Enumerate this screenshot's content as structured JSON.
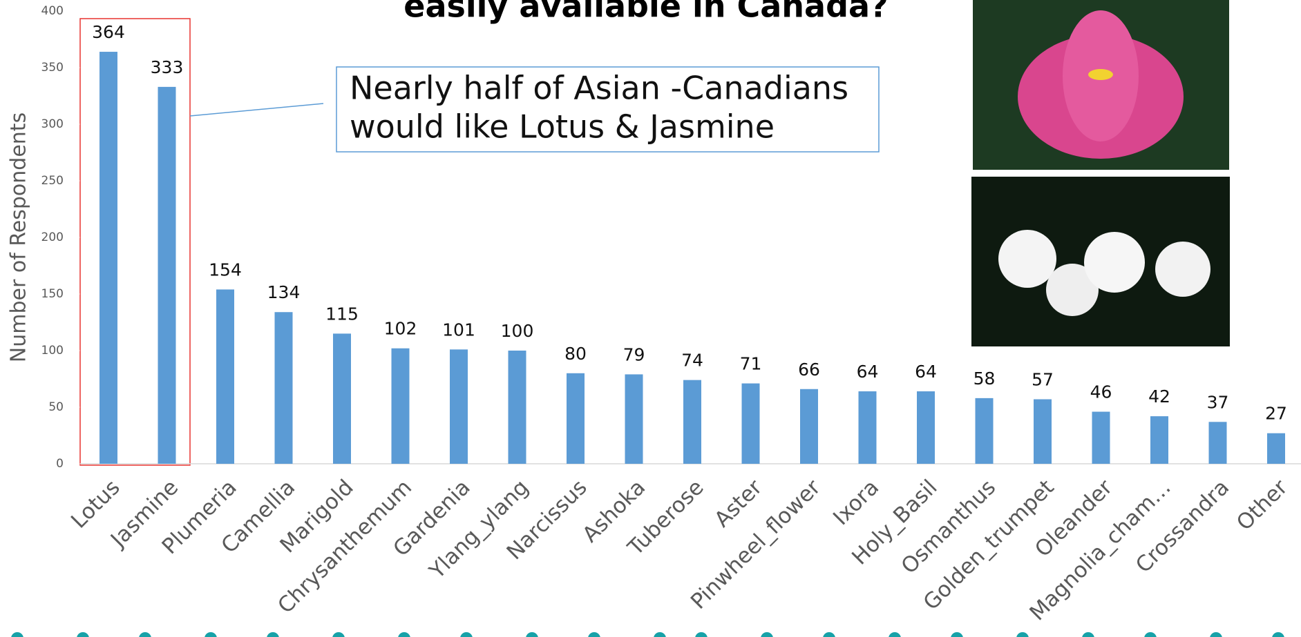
{
  "chart_data": {
    "type": "bar",
    "title": "easily available in Canada?",
    "y_label": "Number of Respondents",
    "annotation": [
      "Nearly half of Asian -Canadians",
      "would like Lotus & Jasmine"
    ],
    "categories": [
      "Lotus",
      "Jasmine",
      "Plumeria",
      "Camellia",
      "Marigold",
      "Chrysanthemum",
      "Gardenia",
      "Ylang_ylang",
      "Narcissus",
      "Ashoka",
      "Tuberose",
      "Aster",
      "Pinwheel_flower",
      "Ixora",
      "Holy_Basil",
      "Osmanthus",
      "Golden_trumpet",
      "Oleander",
      "Magnolia_cham…",
      "Crossandra",
      "Other"
    ],
    "values": [
      364,
      333,
      154,
      134,
      115,
      102,
      101,
      100,
      80,
      79,
      74,
      71,
      66,
      64,
      64,
      58,
      57,
      46,
      42,
      37,
      27
    ],
    "color": "#5b9bd5",
    "ylim": [
      0,
      400
    ],
    "yticks": [
      0,
      50,
      100,
      150,
      200,
      250,
      300,
      350,
      400
    ]
  }
}
